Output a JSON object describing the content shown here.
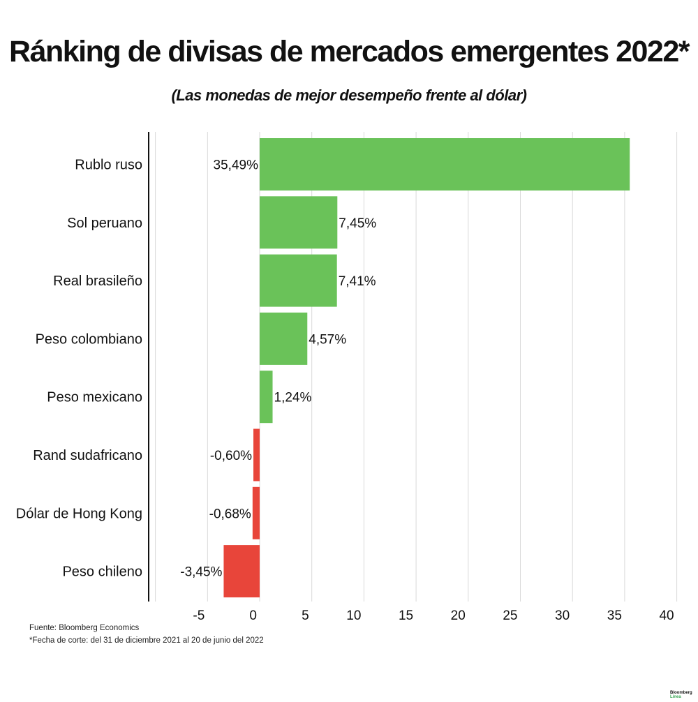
{
  "title": "Ránking de divisas de mercados emergentes 2022*",
  "subtitle": "(Las monedas de mejor desempeño frente al dólar)",
  "footnotes": {
    "source": "Fuente: Bloomberg Economics",
    "cutoff": "*Fecha de corte: del 31 de diciembre 2021 al  20 de junio del 2022"
  },
  "brand": {
    "line1": "Bloomberg",
    "line2": "Línea"
  },
  "colors": {
    "positive": "#6ac259",
    "negative": "#e8453a",
    "grid": "#d9d9d9",
    "axis": "#111111"
  },
  "chart_data": {
    "type": "bar",
    "orientation": "horizontal",
    "title": "Ránking de divisas de mercados emergentes 2022*",
    "subtitle": "(Las monedas de mejor desempeño frente al dólar)",
    "categories": [
      "Rublo ruso",
      "Sol peruano",
      "Real brasileño",
      "Peso colombiano",
      "Peso mexicano",
      "Rand sudafricano",
      "Dólar de Hong Kong",
      "Peso chileno"
    ],
    "values": [
      35.49,
      7.45,
      7.41,
      4.57,
      1.24,
      -0.6,
      -0.68,
      -3.45
    ],
    "data_labels": [
      "35,49%",
      "7,45%",
      "7,41%",
      "4,57%",
      "1,24%",
      "-0,60%",
      "-0,68%",
      "-3,45%"
    ],
    "xlim": [
      -10,
      40
    ],
    "xticks": [
      -5,
      0,
      5,
      10,
      15,
      20,
      25,
      30,
      35,
      40
    ],
    "xtick_labels": [
      "-5",
      "0",
      "5",
      "10",
      "15",
      "20",
      "25",
      "30",
      "35",
      "40"
    ],
    "xlabel": "",
    "ylabel": "",
    "grid": true
  }
}
